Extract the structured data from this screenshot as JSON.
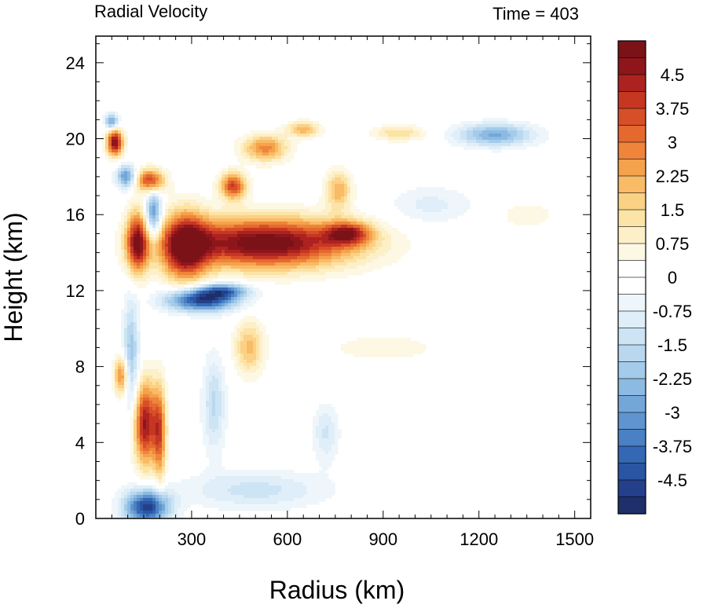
{
  "chart_data": {
    "type": "heatmap",
    "title_left": "Radial Velocity",
    "title_right": "Time = 403",
    "xlabel": "Radius (km)",
    "ylabel": "Height (km)",
    "xlim": [
      0,
      1550
    ],
    "ylim": [
      0,
      25.4
    ],
    "x_ticks": [
      {
        "value": 300,
        "label": "300"
      },
      {
        "value": 600,
        "label": "600"
      },
      {
        "value": 900,
        "label": "900"
      },
      {
        "value": 1200,
        "label": "1200"
      },
      {
        "value": 1500,
        "label": "1500"
      }
    ],
    "y_ticks": [
      {
        "value": 0,
        "label": "0"
      },
      {
        "value": 4,
        "label": "4"
      },
      {
        "value": 8,
        "label": "8"
      },
      {
        "value": 12,
        "label": "12"
      },
      {
        "value": 16,
        "label": "16"
      },
      {
        "value": 20,
        "label": "20"
      },
      {
        "value": 24,
        "label": "24"
      }
    ],
    "colorbar": {
      "min": -5.25,
      "max": 5.25,
      "step": 0.375,
      "labels": [
        "4.5",
        "3.75",
        "3",
        "2.25",
        "1.5",
        "0.75",
        "0",
        "-0.75",
        "-1.5",
        "-2.25",
        "-3",
        "-3.75",
        "-4.5"
      ],
      "label_values": [
        4.5,
        3.75,
        3,
        2.25,
        1.5,
        0.75,
        0,
        -0.75,
        -1.5,
        -2.25,
        -3,
        -3.75,
        -4.5
      ],
      "colors": [
        "#1e2f6b",
        "#24408a",
        "#2a55a3",
        "#3468b5",
        "#4a80c4",
        "#5e94cf",
        "#74a7d9",
        "#8cbae2",
        "#a4cbea",
        "#b9d8ef",
        "#cde4f4",
        "#dfeef8",
        "#eef6fb",
        "#ffffff",
        "#ffffff",
        "#fdf8e4",
        "#fdf0c8",
        "#fce3a6",
        "#fbd186",
        "#f9bb66",
        "#f5a24c",
        "#ee853a",
        "#e5692f",
        "#d74f28",
        "#c63722",
        "#ac2220",
        "#8e161b",
        "#7a1218"
      ]
    },
    "features": [
      {
        "kind": "outflow",
        "x": 530,
        "y": 14.5,
        "sx": 280,
        "sy": 1.3,
        "value": 5.4
      },
      {
        "kind": "outflow",
        "x": 280,
        "y": 14.3,
        "sx": 70,
        "sy": 1.8,
        "value": 4.5
      },
      {
        "kind": "outflow",
        "x": 790,
        "y": 15.0,
        "sx": 70,
        "sy": 0.6,
        "value": 3.5
      },
      {
        "kind": "inflow",
        "x": 330,
        "y": 11.5,
        "sx": 110,
        "sy": 0.6,
        "value": -4.8
      },
      {
        "kind": "inflow",
        "x": 400,
        "y": 12.0,
        "sx": 80,
        "sy": 0.4,
        "value": -3.0
      },
      {
        "kind": "outflow",
        "x": 430,
        "y": 17.5,
        "sx": 40,
        "sy": 0.7,
        "value": 3.8
      },
      {
        "kind": "outflow",
        "x": 530,
        "y": 19.5,
        "sx": 70,
        "sy": 0.7,
        "value": 2.8
      },
      {
        "kind": "outflow",
        "x": 650,
        "y": 20.5,
        "sx": 50,
        "sy": 0.4,
        "value": 2.2
      },
      {
        "kind": "outflow",
        "x": 760,
        "y": 17.3,
        "sx": 40,
        "sy": 1.0,
        "value": 2.2
      },
      {
        "kind": "outflow",
        "x": 950,
        "y": 20.3,
        "sx": 80,
        "sy": 0.4,
        "value": 1.5
      },
      {
        "kind": "inflow",
        "x": 1250,
        "y": 20.2,
        "sx": 120,
        "sy": 0.6,
        "value": -2.7
      },
      {
        "kind": "outflow",
        "x": 1350,
        "y": 16.0,
        "sx": 100,
        "sy": 0.8,
        "value": 0.6
      },
      {
        "kind": "inflow",
        "x": 1050,
        "y": 16.5,
        "sx": 130,
        "sy": 1.0,
        "value": -0.9
      },
      {
        "kind": "outflow",
        "x": 480,
        "y": 9.0,
        "sx": 45,
        "sy": 1.4,
        "value": 2.0
      },
      {
        "kind": "outflow",
        "x": 900,
        "y": 9.0,
        "sx": 250,
        "sy": 1.0,
        "value": 0.5
      },
      {
        "kind": "inflow",
        "x": 370,
        "y": 6.0,
        "sx": 35,
        "sy": 2.5,
        "value": -1.6
      },
      {
        "kind": "inflow",
        "x": 500,
        "y": 1.5,
        "sx": 220,
        "sy": 1.0,
        "value": -1.3
      },
      {
        "kind": "inflow",
        "x": 720,
        "y": 4.5,
        "sx": 40,
        "sy": 1.5,
        "value": -1.2
      },
      {
        "kind": "inflow",
        "x": 160,
        "y": 0.6,
        "sx": 70,
        "sy": 0.9,
        "value": -4.8
      },
      {
        "kind": "outflow",
        "x": 155,
        "y": 5.0,
        "sx": 35,
        "sy": 2.2,
        "value": 4.6
      },
      {
        "kind": "outflow",
        "x": 200,
        "y": 4.5,
        "sx": 20,
        "sy": 2.5,
        "value": 3.2
      },
      {
        "kind": "outflow",
        "x": 80,
        "y": 7.5,
        "sx": 22,
        "sy": 1.0,
        "value": 3.0
      },
      {
        "kind": "inflow",
        "x": 110,
        "y": 8.5,
        "sx": 25,
        "sy": 3.0,
        "value": -2.2
      },
      {
        "kind": "outflow",
        "x": 130,
        "y": 14.5,
        "sx": 35,
        "sy": 1.6,
        "value": 4.6
      },
      {
        "kind": "inflow",
        "x": 180,
        "y": 16.0,
        "sx": 25,
        "sy": 1.2,
        "value": -3.5
      },
      {
        "kind": "outflow",
        "x": 60,
        "y": 19.8,
        "sx": 25,
        "sy": 0.7,
        "value": 5.0
      },
      {
        "kind": "outflow",
        "x": 170,
        "y": 17.8,
        "sx": 45,
        "sy": 0.6,
        "value": 3.8
      },
      {
        "kind": "inflow",
        "x": 95,
        "y": 18.0,
        "sx": 30,
        "sy": 0.6,
        "value": -3.2
      },
      {
        "kind": "inflow",
        "x": 50,
        "y": 20.9,
        "sx": 20,
        "sy": 0.4,
        "value": -3.2
      }
    ]
  }
}
